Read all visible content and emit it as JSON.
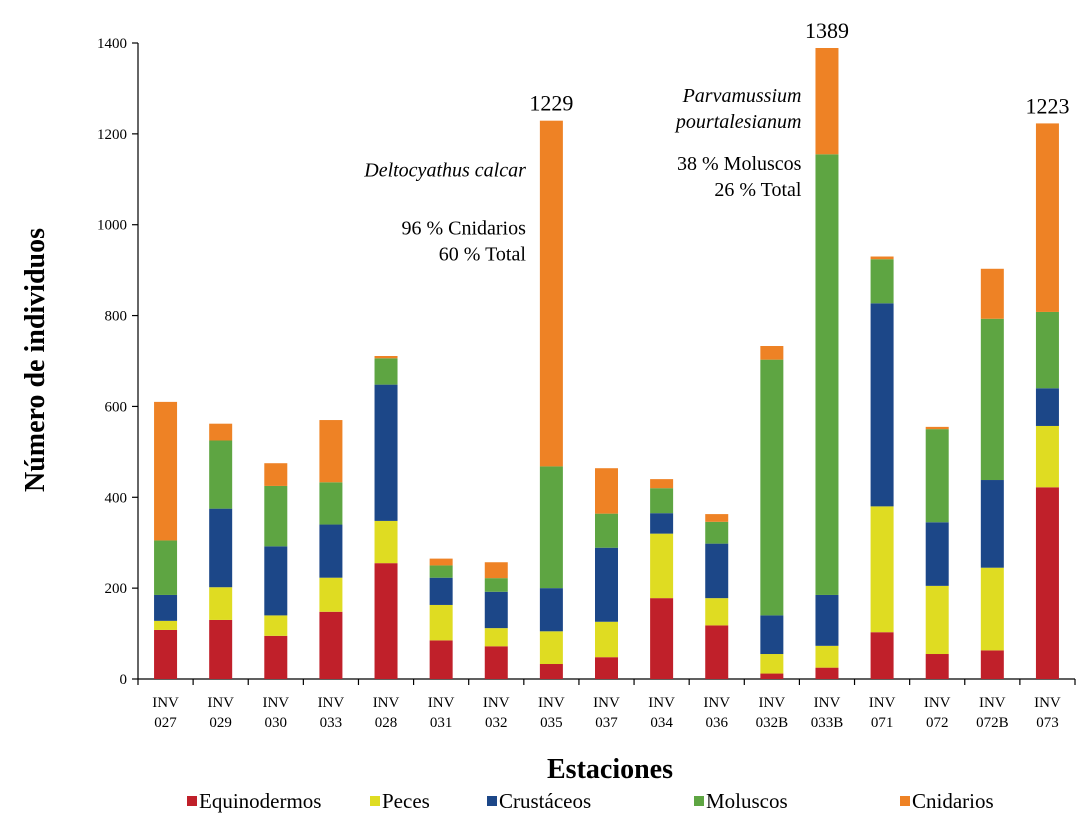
{
  "chart_data": {
    "type": "bar",
    "stacked": true,
    "xlabel": "Estaciones",
    "ylabel": "Número de individuos",
    "ylim": [
      0,
      1400
    ],
    "yticks": [
      0,
      200,
      400,
      600,
      800,
      1000,
      1200,
      1400
    ],
    "grid": false,
    "legend_position": "bottom",
    "categories": [
      [
        "INV",
        "027"
      ],
      [
        "INV",
        "029"
      ],
      [
        "INV",
        "030"
      ],
      [
        "INV",
        "033"
      ],
      [
        "INV",
        "028"
      ],
      [
        "INV",
        "031"
      ],
      [
        "INV",
        "032"
      ],
      [
        "INV",
        "035"
      ],
      [
        "INV",
        "037"
      ],
      [
        "INV",
        "034"
      ],
      [
        "INV",
        "036"
      ],
      [
        "INV",
        "032B"
      ],
      [
        "INV",
        "033B"
      ],
      [
        "INV",
        "071"
      ],
      [
        "INV",
        "072"
      ],
      [
        "INV",
        "072B"
      ],
      [
        "INV",
        "073"
      ]
    ],
    "series": [
      {
        "name": "Equinodermos",
        "color": "#c0202a",
        "values": [
          108,
          130,
          95,
          148,
          255,
          85,
          72,
          33,
          48,
          178,
          118,
          12,
          25,
          103,
          55,
          63,
          422
        ]
      },
      {
        "name": "Peces",
        "color": "#dfdc22",
        "values": [
          20,
          72,
          45,
          75,
          93,
          78,
          40,
          72,
          78,
          142,
          60,
          43,
          48,
          277,
          150,
          182,
          135
        ]
      },
      {
        "name": "Crustáceos",
        "color": "#1c4788",
        "values": [
          57,
          173,
          152,
          117,
          300,
          60,
          80,
          95,
          163,
          45,
          120,
          85,
          112,
          447,
          140,
          193,
          83
        ]
      },
      {
        "name": "Moluscos",
        "color": "#5ea542",
        "values": [
          120,
          150,
          133,
          93,
          58,
          27,
          30,
          268,
          75,
          55,
          48,
          563,
          970,
          97,
          205,
          355,
          168
        ]
      },
      {
        "name": "Cnidarios",
        "color": "#ee8225",
        "values": [
          305,
          37,
          50,
          137,
          5,
          15,
          35,
          761,
          100,
          20,
          17,
          30,
          234,
          6,
          5,
          110,
          415
        ]
      }
    ],
    "annotations": [
      {
        "station_index": 7,
        "total": "1229",
        "species": "Deltocyathus calcar",
        "lines": [
          "96 % Cnidarios",
          "60 % Total"
        ]
      },
      {
        "station_index": 12,
        "total": "1389",
        "species": [
          "Parvamussium",
          "pourtalesianum"
        ],
        "lines": [
          "38 %  Moluscos",
          "26 % Total"
        ]
      },
      {
        "station_index": 16,
        "total": "1223"
      }
    ]
  }
}
